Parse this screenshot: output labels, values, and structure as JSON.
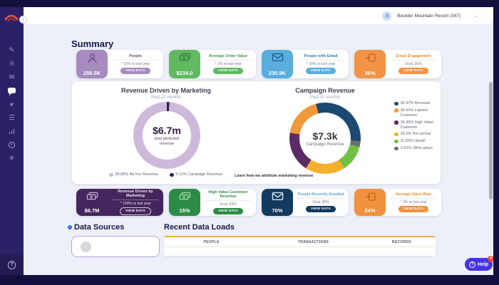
{
  "header": {
    "org_name": "Boulder Mountain Resort (347)"
  },
  "icons": {
    "collapse": "›",
    "chevron_down": "⌄",
    "question": "?",
    "info": "i"
  },
  "sidebar": {
    "items": [
      {
        "name": "compose",
        "glyph": "✎"
      },
      {
        "name": "audience",
        "glyph": "♕"
      },
      {
        "name": "email",
        "glyph": "✉"
      },
      {
        "name": "chat",
        "glyph": ""
      },
      {
        "name": "send",
        "glyph": "➤"
      },
      {
        "name": "lists",
        "glyph": "☰"
      },
      {
        "name": "reports",
        "glyph": ""
      },
      {
        "name": "history",
        "glyph": ""
      },
      {
        "name": "integrations",
        "glyph": "✳"
      }
    ]
  },
  "summary": {
    "title": "Summary",
    "row1": [
      {
        "icon": "person-icon",
        "value": "256.5K",
        "label": "People",
        "sub": "^ 10% vs last year",
        "button": "VIEW DATA",
        "color": "#a78bbf",
        "icon_color": "#6d4a86",
        "label_color": "#6d4a86"
      },
      {
        "icon": "cash-icon",
        "value": "$234.0",
        "label": "Average Order Value",
        "sub": "^ 1% vs last year",
        "button": "VIEW DATA",
        "color": "#61b962",
        "icon_color": "#2e7d32",
        "label_color": "#3c9a40"
      },
      {
        "icon": "envelope-icon",
        "value": "230.9K",
        "label": "People with Email",
        "sub": "^ 39% vs last year",
        "button": "VIEW DATA",
        "color": "#5aaede",
        "icon_color": "#1f6395",
        "label_color": "#2d7db5"
      },
      {
        "icon": "send-mail-icon",
        "value": "36%",
        "label": "Email Engagement",
        "sub": "Goal: 50%",
        "button": "VIEW DATA",
        "color": "#f29345",
        "icon_color": "#c2641f",
        "label_color": "#ef8b28"
      }
    ],
    "row2": [
      {
        "icon": "cash-icon",
        "value": "$6.7M",
        "label": "Revenue Driven by Marketing",
        "sub": "^ 100% vs last year",
        "button": "VIEW DATA",
        "color": "#45265c",
        "icon_color": "#c3aed6",
        "label_color": "#efe8f7",
        "solid": true
      },
      {
        "icon": "cash-icon",
        "value": "15%",
        "label": "High Value Customer Revenue",
        "sub": "Goal: 63%",
        "button": "VIEW DATA",
        "color": "#2c8c46",
        "icon_color": "#a5d6a5",
        "label_color": "#2c8c46"
      },
      {
        "icon": "envelope-icon",
        "value": "70%",
        "label": "People Recently Emailed",
        "sub": "Goal: 95%",
        "button": "VIEW DATA",
        "color": "#123a5f",
        "icon_color": "#d8e8f5",
        "label_color": "#57a9dc"
      },
      {
        "icon": "send-mail-icon",
        "value": "24%",
        "label": "Average Open Rate",
        "sub": "^ 0% vs last year",
        "button": "VIEW DATA",
        "color": "#f2913e",
        "icon_color": "#c2641f",
        "label_color": "#ef8b28"
      }
    ]
  },
  "chart_data": [
    {
      "type": "pie",
      "title": "Revenue Driven by Marketing",
      "subtitle": "Past 12 months",
      "center_value": "$6.7m",
      "center_label": "total attributed revenue",
      "start_angle": 0,
      "segments": [
        {
          "label": "Campaign Revenue",
          "value": 0.11,
          "color": "#3a1f52"
        },
        {
          "label": "Ad hoc Revenue",
          "value": 99.89,
          "color": "#cdbada"
        }
      ],
      "legend": [
        {
          "text": "99.89% Ad hoc Revenue",
          "color": "#cdbada"
        },
        {
          "text": "0.11% Campaign Revenue",
          "color": "#3a1f52"
        }
      ],
      "footnote": "Learn how we attribute marketing revenue"
    },
    {
      "type": "pie",
      "title": "Campaign Revenue",
      "subtitle": "Past 12 months",
      "center_value": "$7.3k",
      "center_label": "Campaign Revenue",
      "start_angle": -15,
      "segments": [
        {
          "label": "Renewal",
          "value": 30.47,
          "color": "#1b4971"
        },
        {
          "label": "Other plays",
          "value": 2.62,
          "color": "#6d6d6d"
        },
        {
          "label": "Upsell",
          "value": 11.93,
          "color": "#71bf44"
        },
        {
          "label": "Pre-arrival",
          "value": 18.2,
          "color": "#f4b02c"
        },
        {
          "label": "High Value Customer",
          "value": 18.36,
          "color": "#5c2c67"
        },
        {
          "label": "Lapsed Customer",
          "value": 18.41,
          "color": "#f2993c"
        }
      ],
      "legend": [
        {
          "text": "30.47% Renewal",
          "color": "#1b4971"
        },
        {
          "text": "18.41% Lapsed Customer",
          "color": "#f2993c"
        },
        {
          "text": "18.36% High Value Customer",
          "color": "#5c2c67"
        },
        {
          "text": "18.2% Pre-arrival",
          "color": "#f4b02c"
        },
        {
          "text": "11.93% Upsell",
          "color": "#71bf44"
        },
        {
          "text": "2.62% Other plays",
          "color": "#6d6d6d"
        }
      ]
    }
  ],
  "sections": {
    "data_sources_title": "Data Sources",
    "recent_loads_title": "Recent Data Loads"
  },
  "recent_loads": {
    "columns": [
      "PEOPLE",
      "TRANSACTIONS",
      "RECORDS"
    ]
  },
  "help_button": {
    "label": "Help",
    "badge": "4"
  }
}
